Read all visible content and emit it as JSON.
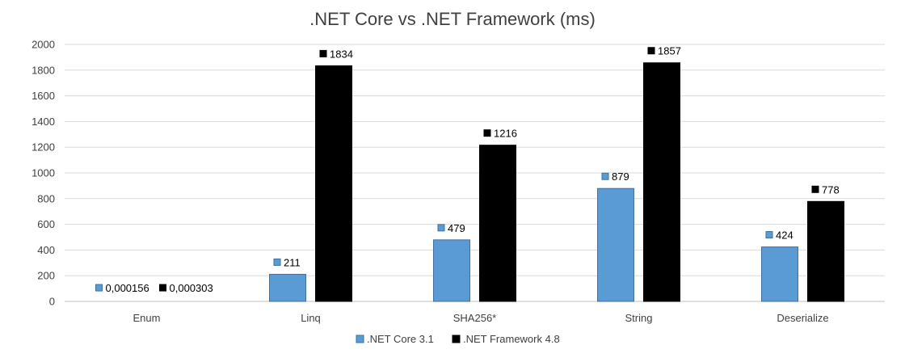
{
  "chart_data": {
    "type": "bar",
    "title": ".NET Core vs .NET Framework (ms)",
    "categories": [
      "Enum",
      "Linq",
      "SHA256*",
      "String",
      "Deserialize"
    ],
    "series": [
      {
        "name": ".NET Core 3.1",
        "color": "#5b9bd5",
        "values": [
          0.000156,
          211,
          479,
          879,
          424
        ],
        "labels": [
          "0,000156",
          "211",
          "479",
          "879",
          "424"
        ]
      },
      {
        "name": ".NET Framework 4.8",
        "color": "#000000",
        "values": [
          0.000303,
          1834,
          1216,
          1857,
          778
        ],
        "labels": [
          "0,000303",
          "1834",
          "1216",
          "1857",
          "778"
        ]
      }
    ],
    "ylim": [
      0,
      2000
    ],
    "yticks": [
      0,
      200,
      400,
      600,
      800,
      1000,
      1200,
      1400,
      1600,
      1800,
      2000
    ],
    "grid": true,
    "legend_position": "bottom"
  }
}
